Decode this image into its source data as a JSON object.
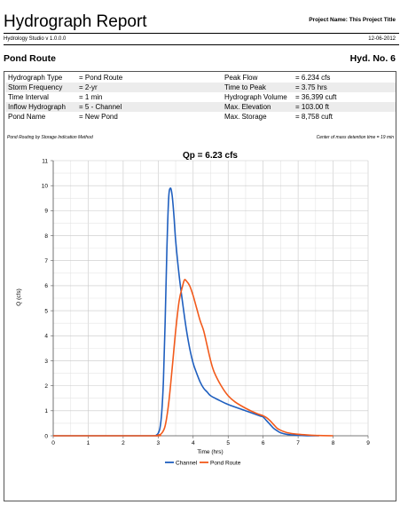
{
  "header": {
    "title": "Hydrograph Report",
    "project_name": "Project Name: This Project Title",
    "app_name": "Hydrology Studio v 1.0.0.0",
    "date": "12-06-2012"
  },
  "section": {
    "left": "Pond Route",
    "right": "Hyd. No. 6"
  },
  "info_rows": [
    {
      "k1": "Hydrograph Type",
      "v1": "= Pond Route",
      "k2": "Peak Flow",
      "v2": "= 6.234 cfs"
    },
    {
      "k1": "Storm Frequency",
      "v1": "= 2-yr",
      "k2": "Time to Peak",
      "v2": "= 3.75 hrs"
    },
    {
      "k1": "Time Interval",
      "v1": "= 1 min",
      "k2": "Hydrograph Volume",
      "v2": "= 36,399 cuft"
    },
    {
      "k1": "Inflow Hydrograph",
      "v1": "= 5 - Channel",
      "k2": "Max. Elevation",
      "v2": "= 103.00 ft"
    },
    {
      "k1": "Pond Name",
      "v1": "= New Pond",
      "k2": "Max. Storage",
      "v2": "= 8,758 cuft"
    }
  ],
  "notes": {
    "left": "Pond Routing by Storage Indication Method",
    "right": "Center of mass detention time = 19 min"
  },
  "chart_data": {
    "type": "line",
    "title": "Qp = 6.23 cfs",
    "xlabel": "Time (hrs)",
    "ylabel": "Q (cfs)",
    "xlim": [
      0,
      9
    ],
    "ylim": [
      0,
      11
    ],
    "xticks": [
      0,
      1,
      2,
      3,
      4,
      5,
      6,
      7,
      8,
      9
    ],
    "yticks": [
      0,
      1,
      2,
      3,
      4,
      5,
      6,
      7,
      8,
      9,
      10,
      11
    ],
    "grid": true,
    "legend_position": "bottom",
    "series": [
      {
        "name": "Channel",
        "color": "#1f5fbf",
        "x": [
          0,
          2.8,
          2.95,
          3.0,
          3.05,
          3.1,
          3.15,
          3.2,
          3.25,
          3.3,
          3.35,
          3.4,
          3.45,
          3.5,
          3.6,
          3.7,
          3.8,
          3.9,
          4.0,
          4.1,
          4.2,
          4.3,
          4.4,
          4.5,
          4.7,
          5.0,
          5.5,
          5.9,
          6.0,
          6.1,
          6.2,
          6.3,
          6.4,
          6.5,
          6.7,
          7.0,
          7.3,
          7.6
        ],
        "y": [
          0,
          0,
          0.03,
          0.1,
          0.3,
          0.9,
          2.2,
          4.6,
          7.5,
          9.5,
          9.9,
          9.6,
          8.8,
          7.8,
          6.4,
          5.3,
          4.3,
          3.5,
          2.9,
          2.5,
          2.15,
          1.9,
          1.75,
          1.6,
          1.45,
          1.25,
          1.0,
          0.8,
          0.75,
          0.6,
          0.45,
          0.3,
          0.2,
          0.12,
          0.05,
          0.02,
          0,
          0
        ]
      },
      {
        "name": "Pond Route",
        "color": "#f25a1b",
        "x": [
          0,
          2.8,
          3.0,
          3.1,
          3.2,
          3.3,
          3.4,
          3.5,
          3.6,
          3.7,
          3.75,
          3.8,
          3.9,
          4.0,
          4.1,
          4.2,
          4.3,
          4.4,
          4.5,
          4.6,
          4.8,
          5.0,
          5.2,
          5.5,
          5.8,
          6.0,
          6.1,
          6.2,
          6.3,
          6.4,
          6.5,
          6.7,
          7.0,
          7.3,
          7.6,
          8.0
        ],
        "y": [
          0,
          0,
          0.03,
          0.1,
          0.4,
          1.3,
          2.7,
          4.2,
          5.4,
          6.0,
          6.23,
          6.2,
          6.0,
          5.6,
          5.1,
          4.6,
          4.2,
          3.6,
          3.0,
          2.55,
          2.0,
          1.6,
          1.35,
          1.1,
          0.9,
          0.8,
          0.72,
          0.6,
          0.45,
          0.3,
          0.22,
          0.12,
          0.06,
          0.03,
          0.01,
          0
        ]
      }
    ]
  }
}
